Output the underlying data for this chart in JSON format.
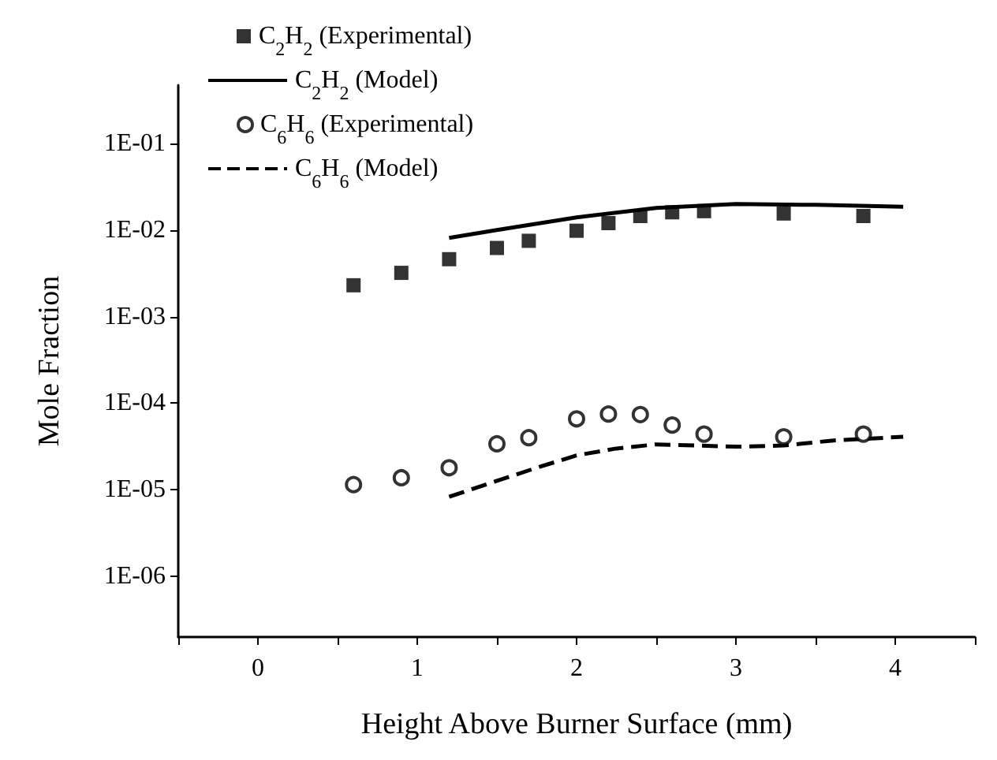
{
  "chart_data": {
    "type": "scatter",
    "xlabel": "Height Above Burner Surface (mm)",
    "ylabel": "Mole Fraction",
    "log": "y",
    "grid": false,
    "legend": "top left",
    "xlim": [
      -0.5,
      4.5
    ],
    "xticks": [
      {
        "value": -0.5,
        "label": null
      },
      0,
      {
        "value": 0.5,
        "label": null
      },
      1,
      {
        "value": 1.5,
        "label": null
      },
      2,
      {
        "value": 2.5,
        "label": null
      },
      3,
      {
        "value": 3.5,
        "label": null
      },
      4,
      {
        "value": 4.5,
        "label": null
      }
    ],
    "ylim": [
      2e-07,
      0.47
    ],
    "yticks": [
      {
        "value": 1e-06,
        "label": "1E-06"
      },
      {
        "value": 1e-05,
        "label": "1E-05"
      },
      {
        "value": 0.0001,
        "label": "1E-04"
      },
      {
        "value": 0.001,
        "label": "1E-03"
      },
      {
        "value": 0.01,
        "label": "1E-02"
      },
      {
        "value": 0.1,
        "label": "1E-01"
      }
    ],
    "series": [
      {
        "name": "C$_{2}$H$_{2}$ (Experimental)",
        "marker": "square",
        "color": "#000000",
        "x": [
          0.6,
          0.9,
          1.2,
          1.5,
          1.7,
          2.0,
          2.2,
          2.4,
          2.6,
          2.8,
          3.3,
          3.8
        ],
        "values": [
          0.0023,
          0.0032,
          0.0046,
          0.0062,
          0.0075,
          0.0098,
          0.012,
          0.0145,
          0.016,
          0.0165,
          0.0155,
          0.0145
        ]
      },
      {
        "name": "C$_{2}$H$_{2}$ (Model)",
        "type": "line",
        "marker": "none",
        "line_style": "solid",
        "color": "#000000",
        "x": [
          1.2,
          1.5,
          2.0,
          2.5,
          3.0,
          3.5,
          4.05
        ],
        "values": [
          0.0081,
          0.01,
          0.014,
          0.018,
          0.02,
          0.0195,
          0.0185
        ]
      },
      {
        "name": "C$_{6}$H$_{6}$ (Experimental)",
        "marker": "circle",
        "color": "#000000",
        "x": [
          0.6,
          0.9,
          1.2,
          1.5,
          1.7,
          2.0,
          2.2,
          2.4,
          2.6,
          2.8,
          3.3,
          3.8
        ],
        "values": [
          1.15e-05,
          1.38e-05,
          1.8e-05,
          3.4e-05,
          4e-05,
          6.6e-05,
          7.5e-05,
          7.4e-05,
          5.6e-05,
          4.4e-05,
          4.1e-05,
          4.4e-05
        ]
      },
      {
        "name": "C$_{6}$H$_{6}$ (Model)",
        "type": "line",
        "marker": "none",
        "line_style": "dashed",
        "color": "#000000",
        "x": [
          1.2,
          1.5,
          1.75,
          2.0,
          2.25,
          2.5,
          2.75,
          3.0,
          3.3,
          3.6,
          4.05
        ],
        "values": [
          8.3e-06,
          1.27e-05,
          1.8e-05,
          2.5e-05,
          3e-05,
          3.35e-05,
          3.25e-05,
          3.15e-05,
          3.25e-05,
          3.7e-05,
          4.1e-05
        ]
      }
    ]
  }
}
